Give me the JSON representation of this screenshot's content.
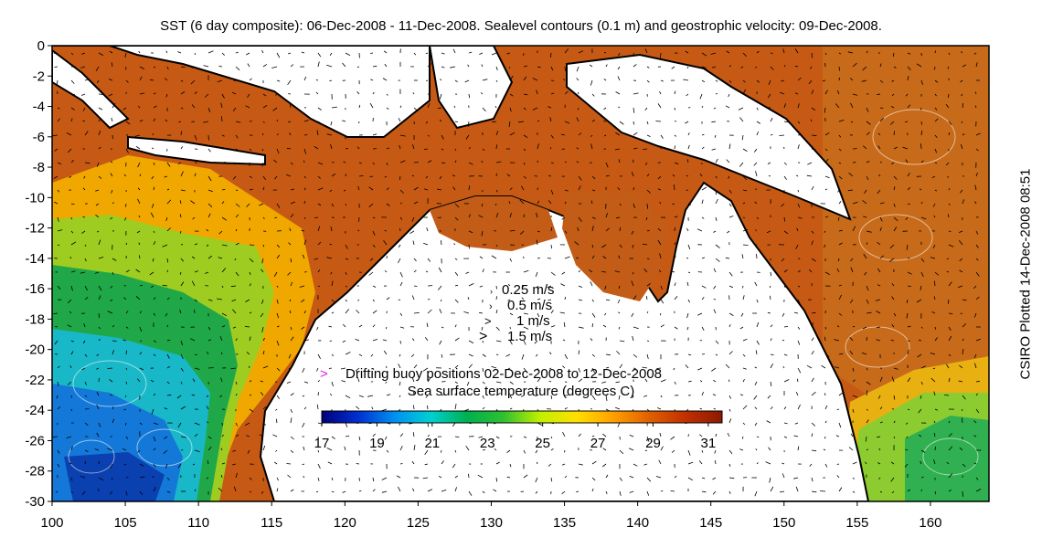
{
  "title": "SST (6 day composite): 06-Dec-2008 - 11-Dec-2008. Sealevel contours (0.1 m) and geostrophic velocity: 09-Dec-2008.",
  "side_credit": "CSIRO Plotted 14-Dec-2008 08:51",
  "axes": {
    "lon_range": [
      100,
      164
    ],
    "lat_range": [
      -30,
      0
    ],
    "x_ticks": [
      "100",
      "105",
      "110",
      "115",
      "120",
      "125",
      "130",
      "135",
      "140",
      "145",
      "150",
      "155",
      "160"
    ],
    "y_ticks": [
      "0",
      "-2",
      "-4",
      "-6",
      "-8",
      "-10",
      "-12",
      "-14",
      "-16",
      "-18",
      "-20",
      "-22",
      "-24",
      "-26",
      "-28",
      "-30"
    ]
  },
  "velocity_legend": {
    "items": [
      {
        "label": "0.25 m/s",
        "speed": 0.25
      },
      {
        "label": "0.5 m/s",
        "speed": 0.5
      },
      {
        "label": "1 m/s",
        "speed": 1.0
      },
      {
        "label": "1.5 m/s",
        "speed": 1.5
      }
    ]
  },
  "buoy_legend": {
    "marker": ">",
    "label": "Drifting buoy positions 02-Dec-2008 to 12-Dec-2008",
    "color": "#e020e0"
  },
  "colorbar": {
    "title": "Sea surface temperature (degrees C)",
    "min": 17,
    "max": 31.5,
    "tick_labels": [
      "17",
      "19",
      "21",
      "23",
      "25",
      "27",
      "29",
      "31"
    ],
    "colors": [
      "#00007a",
      "#0030d0",
      "#0090f0",
      "#00d0d0",
      "#00b050",
      "#30c030",
      "#c0f000",
      "#ffe000",
      "#ffa000",
      "#e06000",
      "#c03000",
      "#8c1a00"
    ]
  },
  "colors": {
    "land": "#ffffff",
    "coast": "#000000",
    "warm_sea": "#c8601a",
    "contour": "#ffffff"
  }
}
